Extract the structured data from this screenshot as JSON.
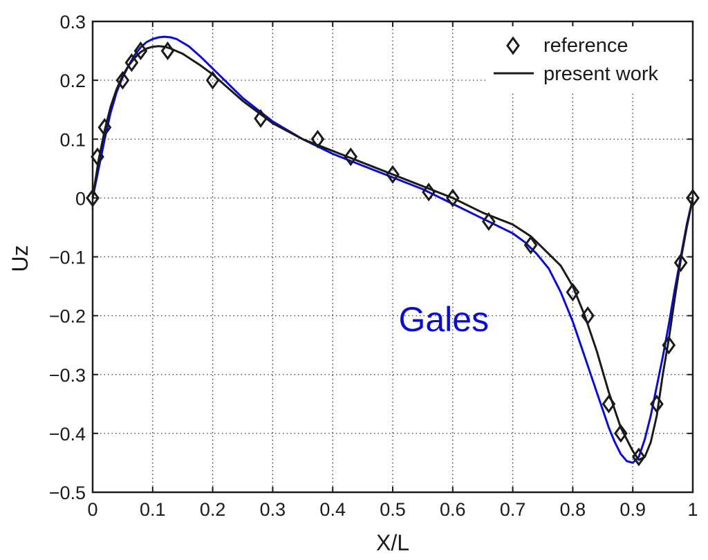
{
  "chart_data": {
    "type": "line",
    "title": "",
    "xlabel": "X/L",
    "ylabel": "Uz",
    "xlim": [
      0,
      1
    ],
    "ylim": [
      -0.5,
      0.3
    ],
    "xticks": [
      0,
      0.1,
      0.2,
      0.3,
      0.4,
      0.5,
      0.6,
      0.7,
      0.8,
      0.9,
      1
    ],
    "xtick_labels": [
      "0",
      "0.1",
      "0.2",
      "0.3",
      "0.4",
      "0.5",
      "0.6",
      "0.7",
      "0.8",
      "0.9",
      "1"
    ],
    "yticks": [
      -0.5,
      -0.4,
      -0.3,
      -0.2,
      -0.1,
      0,
      0.1,
      0.2,
      0.3
    ],
    "ytick_labels": [
      "−0.5",
      "−0.4",
      "−0.3",
      "−0.2",
      "−0.1",
      "0",
      "0.1",
      "0.2",
      "0.3"
    ],
    "grid": true,
    "legend_position": "top-right",
    "series": [
      {
        "name": "reference",
        "style": "markers-diamond",
        "color": "#1a1a1a",
        "x": [
          0,
          0.008,
          0.02,
          0.05,
          0.065,
          0.08,
          0.125,
          0.2,
          0.28,
          0.375,
          0.43,
          0.5,
          0.56,
          0.6,
          0.66,
          0.73,
          0.8,
          0.825,
          0.86,
          0.88,
          0.91,
          0.94,
          0.96,
          0.98,
          1.0
        ],
        "y": [
          0,
          0.07,
          0.12,
          0.2,
          0.23,
          0.25,
          0.25,
          0.2,
          0.135,
          0.1,
          0.07,
          0.04,
          0.01,
          0,
          -0.04,
          -0.08,
          -0.16,
          -0.2,
          -0.35,
          -0.4,
          -0.44,
          -0.35,
          -0.25,
          -0.11,
          0
        ]
      },
      {
        "name": "present work",
        "style": "line",
        "color": "#1a1a1a",
        "x": [
          0,
          0.01,
          0.02,
          0.03,
          0.04,
          0.05,
          0.06,
          0.07,
          0.08,
          0.09,
          0.1,
          0.11,
          0.12,
          0.13,
          0.15,
          0.18,
          0.2,
          0.25,
          0.3,
          0.35,
          0.4,
          0.45,
          0.5,
          0.55,
          0.6,
          0.65,
          0.7,
          0.73,
          0.75,
          0.78,
          0.8,
          0.82,
          0.84,
          0.86,
          0.88,
          0.9,
          0.91,
          0.92,
          0.93,
          0.94,
          0.95,
          0.96,
          0.97,
          0.98,
          0.99,
          1.0
        ],
        "y": [
          0,
          0.065,
          0.115,
          0.155,
          0.185,
          0.208,
          0.225,
          0.238,
          0.248,
          0.254,
          0.257,
          0.258,
          0.257,
          0.254,
          0.245,
          0.225,
          0.21,
          0.165,
          0.127,
          0.1,
          0.08,
          0.06,
          0.04,
          0.02,
          0,
          -0.025,
          -0.045,
          -0.065,
          -0.085,
          -0.115,
          -0.15,
          -0.2,
          -0.26,
          -0.33,
          -0.39,
          -0.43,
          -0.445,
          -0.44,
          -0.415,
          -0.37,
          -0.3,
          -0.24,
          -0.17,
          -0.105,
          -0.05,
          0
        ]
      },
      {
        "name": "",
        "style": "line",
        "color": "#0a0ad8",
        "x": [
          0,
          0.01,
          0.02,
          0.03,
          0.04,
          0.05,
          0.06,
          0.07,
          0.08,
          0.09,
          0.1,
          0.11,
          0.12,
          0.13,
          0.14,
          0.16,
          0.18,
          0.2,
          0.25,
          0.3,
          0.35,
          0.4,
          0.45,
          0.5,
          0.55,
          0.6,
          0.65,
          0.7,
          0.72,
          0.74,
          0.76,
          0.78,
          0.8,
          0.82,
          0.84,
          0.86,
          0.87,
          0.88,
          0.89,
          0.9,
          0.91,
          0.92,
          0.93,
          0.94,
          0.95,
          0.96,
          0.97,
          0.98,
          0.99,
          1.0
        ],
        "y": [
          0,
          0.05,
          0.1,
          0.145,
          0.18,
          0.205,
          0.225,
          0.243,
          0.256,
          0.265,
          0.27,
          0.273,
          0.274,
          0.273,
          0.27,
          0.258,
          0.24,
          0.22,
          0.17,
          0.13,
          0.1,
          0.075,
          0.055,
          0.035,
          0.015,
          -0.01,
          -0.035,
          -0.06,
          -0.075,
          -0.095,
          -0.12,
          -0.16,
          -0.21,
          -0.27,
          -0.33,
          -0.39,
          -0.415,
          -0.435,
          -0.447,
          -0.45,
          -0.44,
          -0.41,
          -0.37,
          -0.32,
          -0.27,
          -0.215,
          -0.155,
          -0.1,
          -0.045,
          0
        ]
      }
    ],
    "annotations": [
      {
        "text": "Gales",
        "x": 0.585,
        "y": -0.205,
        "color": "#0a0ad8"
      }
    ]
  }
}
